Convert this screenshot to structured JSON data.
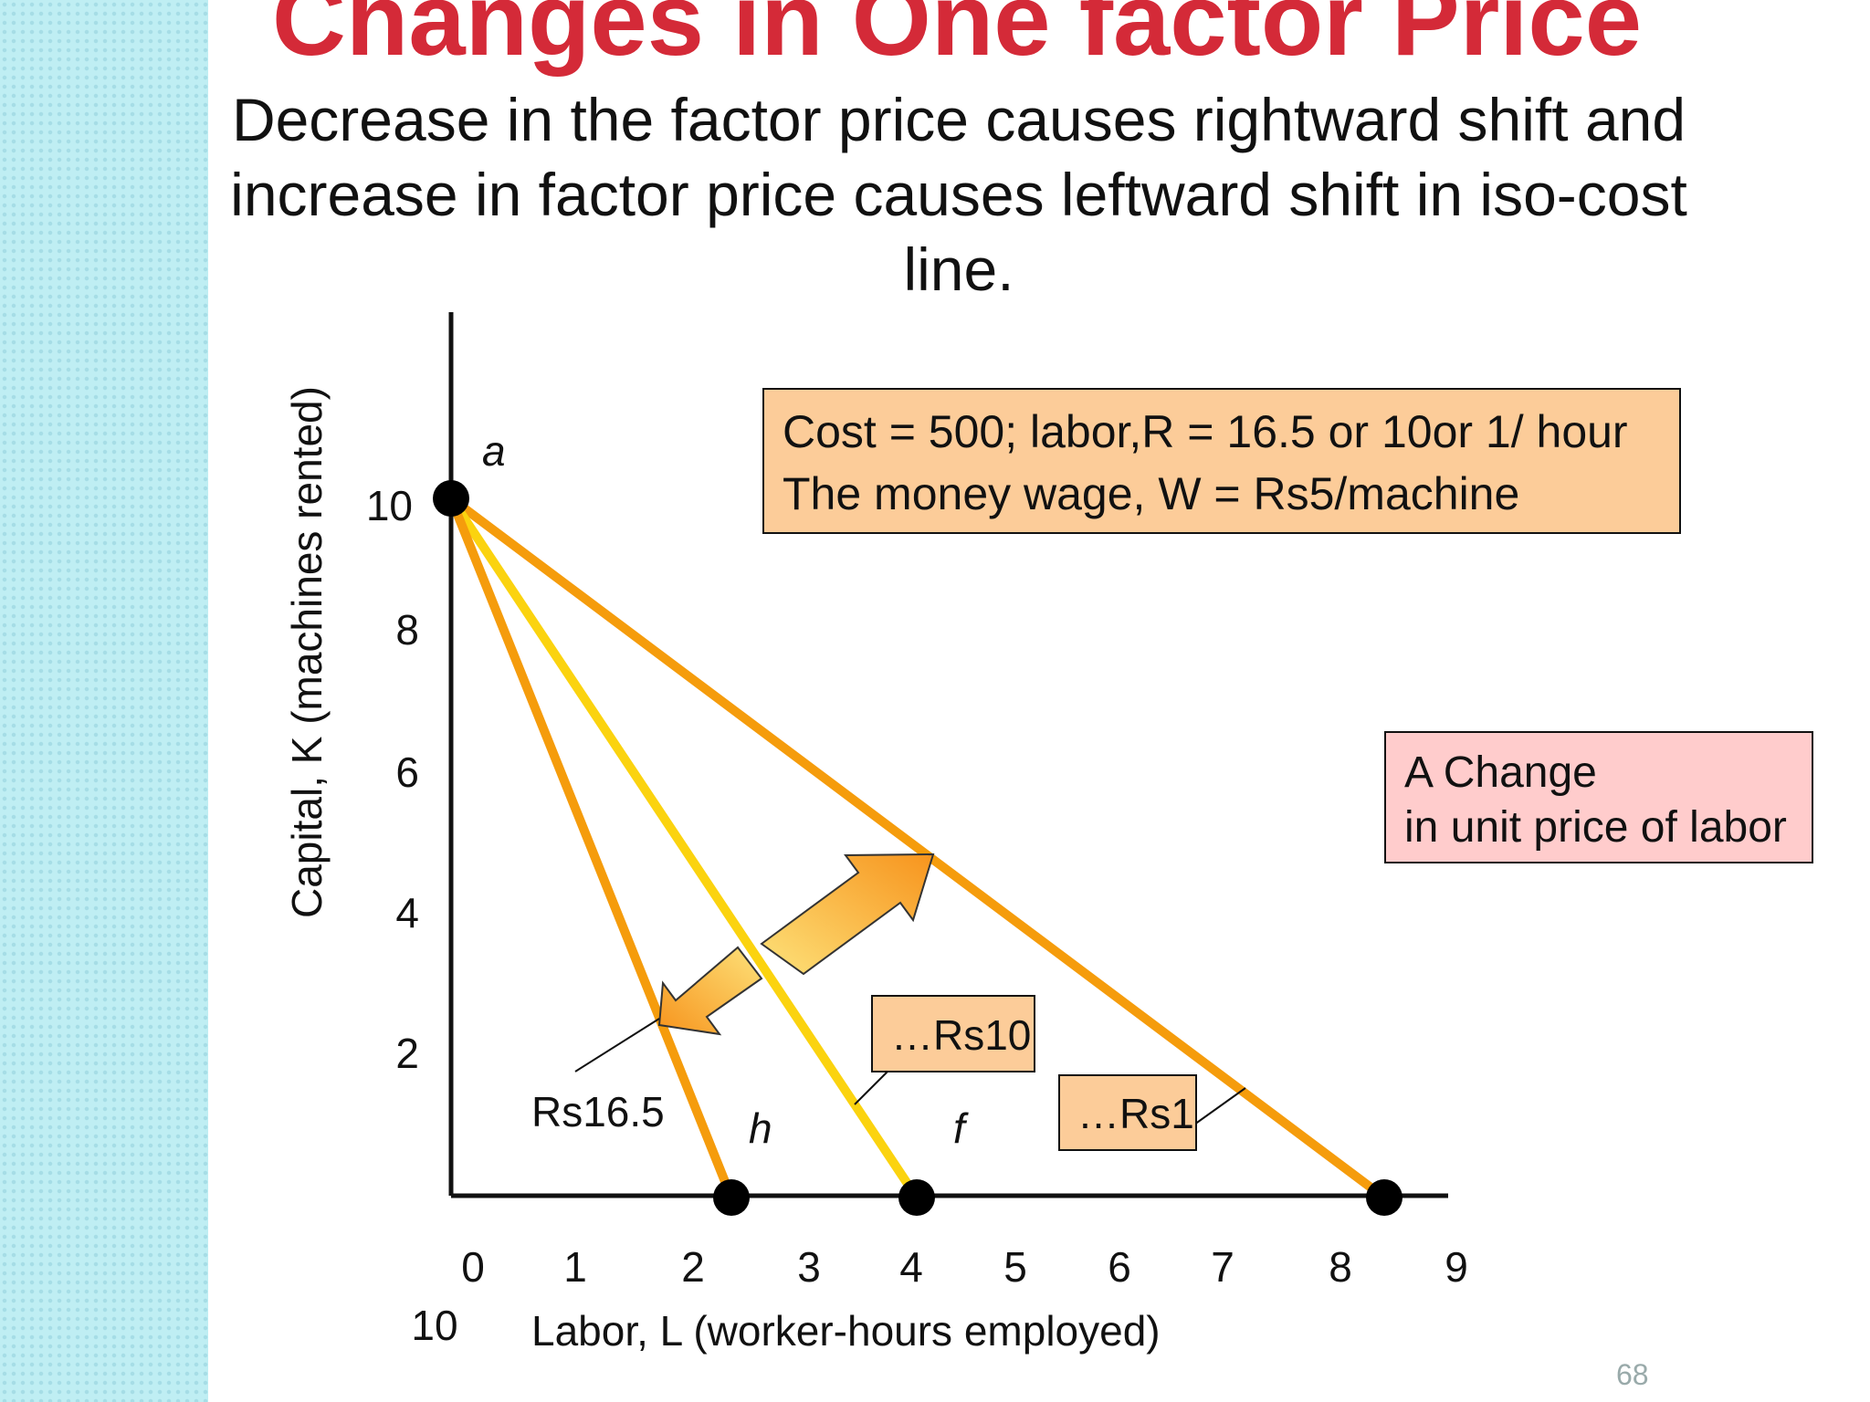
{
  "slide": {
    "title": "Changes in One factor Price",
    "subtitle_lines": [
      "Decrease in the factor price causes rightward shift and",
      "increase in factor price causes leftward shift in iso-cost",
      "line."
    ],
    "page_number": "68"
  },
  "diagram": {
    "y_axis_label": "Capital, K (machines rented)",
    "x_axis_label": "Labor, L (worker-hours employed)",
    "y_ticks": [
      "10",
      "8",
      "6",
      "4",
      "2"
    ],
    "x_ticks": [
      "0",
      "1",
      "2",
      "3",
      "4",
      "5",
      "6",
      "7",
      "8",
      "9"
    ],
    "x_extra_tick": "10",
    "point_labels": {
      "a": "a",
      "h": "h",
      "f": "f"
    },
    "info_box": [
      "Cost = 500; labor,R = 16.5 or 10or 1/ hour",
      "The money wage, W = Rs5/machine"
    ],
    "change_box": [
      "A Change",
      "in unit price of labor"
    ],
    "line_labels": {
      "rs16_5": "Rs16.5",
      "rs10": "…Rs10",
      "rs1": "…Rs1"
    },
    "colors": {
      "iso_cost_orange": "#f59c0c",
      "iso_cost_yellow": "#fbd30f",
      "info_box_fill": "#fccc99",
      "change_box_fill": "#ffcccc",
      "title_red": "#d42a38"
    }
  }
}
